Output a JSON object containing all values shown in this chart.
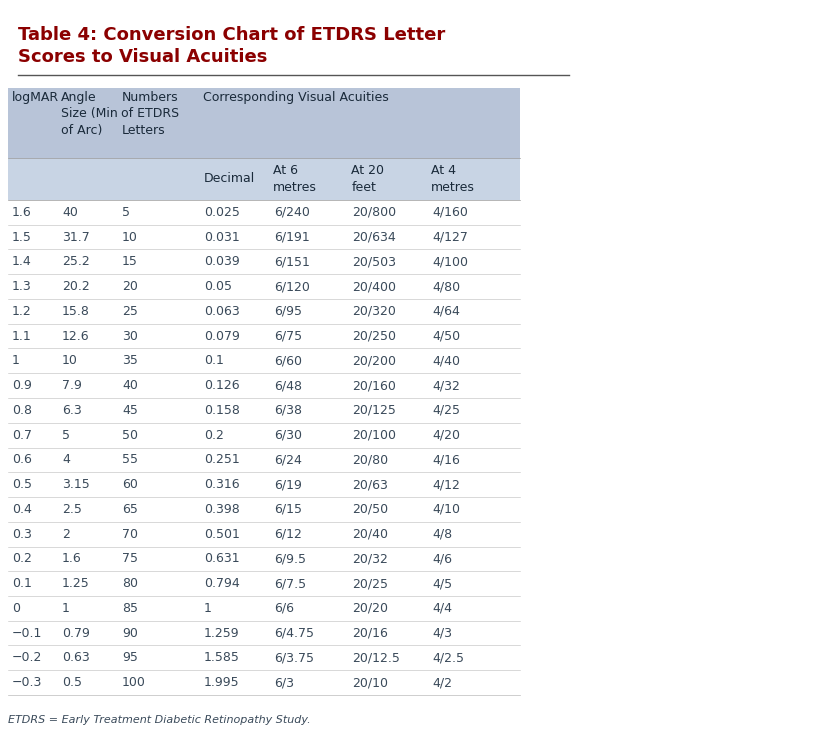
{
  "title_line1": "Table 4: Conversion Chart of ETDRS Letter",
  "title_line2": "Scores to Visual Acuities",
  "title_color": "#8B0000",
  "background_color": "#FFFFFF",
  "header_bg_color1": "#B8C4D8",
  "header_bg_color2": "#C8D4E4",
  "footnote": "ETDRS = Early Treatment Diabetic Retinopathy Study.",
  "rows": [
    [
      "1.6",
      "40",
      "5",
      "0.025",
      "6/240",
      "20/800",
      "4/160"
    ],
    [
      "1.5",
      "31.7",
      "10",
      "0.031",
      "6/191",
      "20/634",
      "4/127"
    ],
    [
      "1.4",
      "25.2",
      "15",
      "0.039",
      "6/151",
      "20/503",
      "4/100"
    ],
    [
      "1.3",
      "20.2",
      "20",
      "0.05",
      "6/120",
      "20/400",
      "4/80"
    ],
    [
      "1.2",
      "15.8",
      "25",
      "0.063",
      "6/95",
      "20/320",
      "4/64"
    ],
    [
      "1.1",
      "12.6",
      "30",
      "0.079",
      "6/75",
      "20/250",
      "4/50"
    ],
    [
      "1",
      "10",
      "35",
      "0.1",
      "6/60",
      "20/200",
      "4/40"
    ],
    [
      "0.9",
      "7.9",
      "40",
      "0.126",
      "6/48",
      "20/160",
      "4/32"
    ],
    [
      "0.8",
      "6.3",
      "45",
      "0.158",
      "6/38",
      "20/125",
      "4/25"
    ],
    [
      "0.7",
      "5",
      "50",
      "0.2",
      "6/30",
      "20/100",
      "4/20"
    ],
    [
      "0.6",
      "4",
      "55",
      "0.251",
      "6/24",
      "20/80",
      "4/16"
    ],
    [
      "0.5",
      "3.15",
      "60",
      "0.316",
      "6/19",
      "20/63",
      "4/12"
    ],
    [
      "0.4",
      "2.5",
      "65",
      "0.398",
      "6/15",
      "20/50",
      "4/10"
    ],
    [
      "0.3",
      "2",
      "70",
      "0.501",
      "6/12",
      "20/40",
      "4/8"
    ],
    [
      "0.2",
      "1.6",
      "75",
      "0.631",
      "6/9.5",
      "20/32",
      "4/6"
    ],
    [
      "0.1",
      "1.25",
      "80",
      "0.794",
      "6/7.5",
      "20/25",
      "4/5"
    ],
    [
      "0",
      "1",
      "85",
      "1",
      "6/6",
      "20/20",
      "4/4"
    ],
    [
      "−0.1",
      "0.79",
      "90",
      "1.259",
      "6/4.75",
      "20/16",
      "4/3"
    ],
    [
      "−0.2",
      "0.63",
      "95",
      "1.585",
      "6/3.75",
      "20/12.5",
      "4/2.5"
    ],
    [
      "−0.3",
      "0.5",
      "100",
      "1.995",
      "6/3",
      "20/10",
      "4/2"
    ]
  ],
  "text_color": "#3A4A5A",
  "row_line_color": "#BBBBBB",
  "header_text_color": "#1A2A3A",
  "title_fontsize": 13,
  "header_fontsize": 9,
  "data_fontsize": 9,
  "footnote_fontsize": 8
}
